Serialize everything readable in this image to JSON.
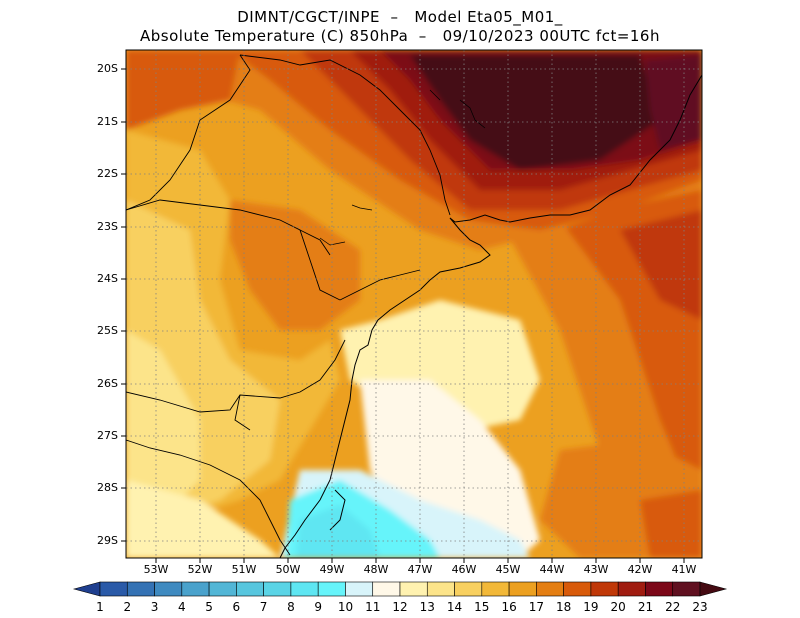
{
  "title_line1": "DIMNT/CGCT/INPE  –   Model Eta05_M01_",
  "title_line2": "Absolute Temperature (C) 850hPa  –   09/10/2023 00UTC fct=16h",
  "lat_labels": [
    "20S",
    "21S",
    "22S",
    "23S",
    "24S",
    "25S",
    "26S",
    "27S",
    "28S",
    "29S"
  ],
  "lon_labels": [
    "53W",
    "52W",
    "51W",
    "50W",
    "49W",
    "48W",
    "47W",
    "46W",
    "45W",
    "44W",
    "43W",
    "42W",
    "41W"
  ],
  "colorbar": {
    "labels": [
      "1",
      "2",
      "3",
      "4",
      "5",
      "6",
      "7",
      "8",
      "9",
      "10",
      "11",
      "12",
      "13",
      "14",
      "15",
      "16",
      "17",
      "18",
      "19",
      "20",
      "21",
      "22",
      "23"
    ],
    "colors": [
      "#1f3f8f",
      "#2a5aa8",
      "#3472b4",
      "#3f8ac0",
      "#4aa2cc",
      "#52b6d6",
      "#57c6de",
      "#5ad4e6",
      "#5ee6f2",
      "#66f4fa",
      "#d8f4fa",
      "#fff8e8",
      "#fff2b0",
      "#fce48a",
      "#f8d060",
      "#f2b838",
      "#eca020",
      "#e47e12",
      "#d85a0a",
      "#c03808",
      "#a01c10",
      "#7c0818",
      "#601020",
      "#450a12"
    ]
  }
}
